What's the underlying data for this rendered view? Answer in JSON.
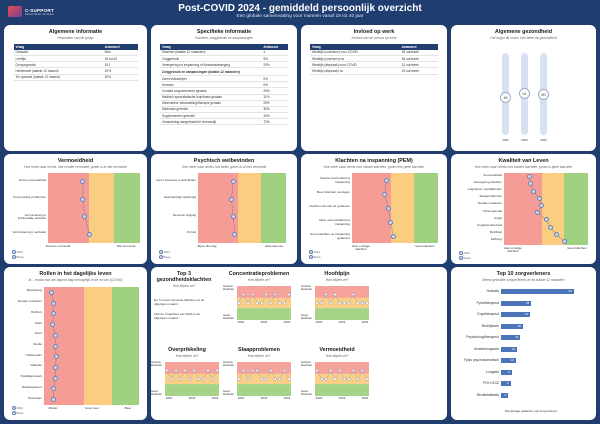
{
  "header": {
    "logo_text": "C-SUPPORT",
    "logo_sub": "Samen verder na corona",
    "title": "Post-COVID 2024 - gemiddeld persoonlijk overzicht",
    "subtitle": "Een globale samenvatting voor mannen vanaf 18 tot 40 jaar"
  },
  "colors": {
    "background": "#1f3d6e",
    "accent": "#4b74b9",
    "zone_red": "#f28b82",
    "zone_orange": "#f9c46b",
    "zone_green": "#8fc96b",
    "title_purple": "#6b3fa0"
  },
  "algemene": {
    "title": "Algemene informatie",
    "subtitle": "Resultaten van de groep",
    "head": [
      "Vraag",
      "Antwoord"
    ],
    "rows": [
      [
        "Geslacht",
        "Man"
      ],
      [
        "Leeftijd",
        "18 tot 40"
      ],
      [
        "Groepsgrootte",
        "151"
      ],
      [
        "Herbesmet (laatste 12 maand)",
        "20%"
      ],
      [
        "Ter opname (laatste 12 maand)",
        "20%"
      ]
    ]
  },
  "specifieke": {
    "title": "Specifieke informatie",
    "subtitle": "Klachten, zorggebruik en aanpassingen",
    "head": [
      "Vraag",
      "Antwoord"
    ],
    "rows": [
      [
        "Klachten (laatste 12 maanden)",
        "4"
      ],
      [
        "Zorggebruik",
        "5%"
      ],
      [
        "Verergering na inspanning of lichaamsbeweging",
        "20%"
      ]
    ],
    "section": "Zorggebruik en aanpassingen (laatste 12 maanden)",
    "rows2": [
      [
        "Geen/Volksdrijver",
        "0%"
      ],
      [
        "Huisarts",
        "0%"
      ],
      [
        "Contact zorgverlenener gedaan",
        "20%"
      ],
      [
        "Medisch specialistische hulp/basis gedaan",
        "11%"
      ],
      [
        "Alternatieve behandeling/therapie gedaan",
        "29%"
      ],
      [
        "Medicatie gebruikt",
        "30%"
      ],
      [
        "Supplementen gebruikt",
        "40%"
      ],
      [
        "Verandering aangebracht in levensstijl",
        "72%"
      ]
    ]
  },
  "werk": {
    "title": "Invloed op werk",
    "subtitle": "Invloed van de corona op werk",
    "head": [
      "Vraag",
      "Antwoord"
    ],
    "rows": [
      [
        "Werktijd (voorheen) voor COVID",
        "36 uur/week"
      ],
      [
        "Werktijd (voorheen) nu",
        "36 uur/week"
      ],
      [
        "Werktijd (afspraak) voor COVID",
        "31 uur/week"
      ],
      [
        "Werktijd (afspraak) nu",
        "15 uur/week"
      ]
    ]
  },
  "gezondheid": {
    "title": "Algemene gezondheid",
    "subtitle": "Het hoger de score, hoe beter de gezondheid",
    "years": [
      "2022",
      "2023",
      "2024"
    ],
    "values": [
      46,
      51,
      50
    ]
  },
  "vermoeidheid": {
    "title": "Vermoeidheid",
    "subtitle": "Hoe meer naar rechts, hoe minder vermoeid, groen is al niet vermoeid",
    "items": [
      "Extra vermoeidheid",
      "Concentratie problemen",
      "Vermindering in lichamelijke activiteit",
      "Vermindering in activiteit"
    ],
    "values": [
      0.38,
      0.38,
      0.4,
      0.45
    ],
    "axis": [
      "Extreem vermoeid",
      "Niet vermoeid"
    ],
    "legend": [
      "2024",
      "Beste"
    ]
  },
  "welbevinden": {
    "title": "Psychisch welbevinden",
    "subtitle": "Hoe meer naar rechts hoe beter, groen is al niet vermoeid",
    "items": [
      "Geen interesse in activiteiten",
      "Neerslachtig/ wanhopig",
      "Nerveus/ angstig",
      "Onrust"
    ],
    "values": [
      0.4,
      0.38,
      0.4,
      0.42
    ],
    "axis": [
      "Bijna elke dag",
      "Helemaal niet"
    ],
    "legend": [
      "2024",
      "Beste"
    ]
  },
  "pem": {
    "title": "Klachten na inspanning (PEM)",
    "subtitle": "Hoe meer naar rechts hoe minder klachten, groen hier geen klachten",
    "items": [
      "Moeite met herstel na inspanning",
      "Meer klachten na dagen",
      "Klachten die elk uur gebleven",
      "Meer vermoeidheid na inspanning",
      "Geen klachten na inspanning gebleven"
    ],
    "values": [
      0.4,
      0.38,
      0.42,
      0.45,
      0.48
    ],
    "axis": [
      "Zeer ernstige klachten",
      "Geen klachten"
    ],
    "legend": [
      "2024",
      "Beste"
    ]
  },
  "kwaliteit": {
    "title": "Kwaliteit van Leven",
    "subtitle": "Hoe meer naar rechts hoe minder klachten, groen is geen klachten",
    "items": [
      "Vermoeidheid",
      "Verergering klachten",
      "Cognitieve moeilijkheden",
      "Slaapproblemen",
      "Sociale contacten",
      "Pijn/ongemak",
      "Angst",
      "Angst/somberheid",
      "Mobiliteit",
      "Zelfzorg"
    ],
    "values": [
      0.3,
      0.32,
      0.35,
      0.42,
      0.45,
      0.4,
      0.5,
      0.55,
      0.62,
      0.72
    ],
    "axis": [
      "Zeer ernstige klachten",
      "Geen klachten"
    ],
    "legend": [
      "2024",
      "Beste"
    ]
  },
  "rollen": {
    "title": "Rollen in het dagelijks leven",
    "subtitle": "Ik... ervaar dat van dag tot dag onmogelijk in de rol van (COVID)",
    "items": [
      "Mantelzorg",
      "Sociale contacten",
      "Hobby's",
      "Werk",
      "Sport",
      "Studie",
      "Huishouden",
      "Vakantie",
      "Vrijwilligerswerk",
      "Relatie/partner",
      "Opvoeden"
    ],
    "values": [
      0.08,
      0.1,
      0.1,
      0.09,
      0.12,
      0.12,
      0.13,
      0.12,
      0.12,
      0.1,
      0.1
    ],
    "axis": [
      "Minder",
      "Even veel",
      "Meer"
    ],
    "legend": [
      "2024",
      "Beste"
    ]
  },
  "top3": {
    "title": "Top 3 gezondheidsklachten",
    "subtitle": "Hoe blijven ze?",
    "items": [
      "De 3 meest relevante klachten uit de afgelopen maand",
      "Ook de 3 klachten van 2023 in de afgelopen maand"
    ]
  },
  "conc": {
    "title": "Concentratieproblemen",
    "subtitle": "Hoe blijven ze?",
    "top": "Gebrek klachten",
    "bottom": "Geen klachten",
    "xlabels": [
      "2022",
      "2023",
      "2024"
    ],
    "values": [
      3,
      4,
      3,
      4,
      3,
      3,
      4,
      3,
      4,
      3,
      3,
      4
    ]
  },
  "hoofdpijn": {
    "title": "Hoofdpijn",
    "subtitle": "Hoe blijven ze?",
    "top": "Gebrek klachten",
    "bottom": "Geen klachten",
    "xlabels": [
      "2022",
      "2023",
      "2024"
    ],
    "values": [
      3,
      3,
      4,
      3,
      4,
      3,
      3,
      3,
      4,
      3,
      3,
      3
    ]
  },
  "overprik": {
    "title": "Overprikkeling",
    "subtitle": "Hoe blijven ze?",
    "top": "Gebrek klachten",
    "bottom": "Geen klachten",
    "xlabels": [
      "2022",
      "2023",
      "2024"
    ],
    "values": [
      4,
      3,
      4,
      3,
      4,
      3,
      4,
      3,
      3,
      4,
      3,
      4
    ]
  },
  "slaap": {
    "title": "Slaapproblemen",
    "subtitle": "Hoe blijven ze?",
    "top": "Gebrek klachten",
    "bottom": "Geen klachten",
    "xlabels": [
      "2022",
      "2023",
      "2024"
    ],
    "values": [
      3,
      4,
      3,
      4,
      4,
      3,
      3,
      4,
      3,
      3,
      4,
      3
    ]
  },
  "vermoeid2": {
    "title": "Vermoeidheid",
    "subtitle": "Hoe blijven ze?",
    "top": "Gebrek klachten",
    "bottom": "Geen klachten",
    "xlabels": [
      "2022",
      "2023",
      "2024"
    ],
    "values": [
      4,
      3,
      3,
      4,
      3,
      4,
      3,
      3,
      4,
      3,
      4,
      3
    ]
  },
  "top10": {
    "title": "Top 10 zorgverleners",
    "subtitle": "Meest gebruikte zorgverleners in de laatste 12 maanden",
    "labels": [
      "Huisarts",
      "Fysiotherapeut",
      "Ergotherapeut",
      "Bedrijfsarts",
      "Psycholoog/therapeut",
      "Verzekeringsarts",
      "Fysio psychosomatisch",
      "Longarts",
      "POH-GGZ",
      "Revalidatiearts"
    ],
    "values": [
      60,
      25,
      24,
      18,
      16,
      13,
      12,
      9,
      8,
      6
    ],
    "xlabel": "Percentage patiënten met zorgverlenen"
  }
}
